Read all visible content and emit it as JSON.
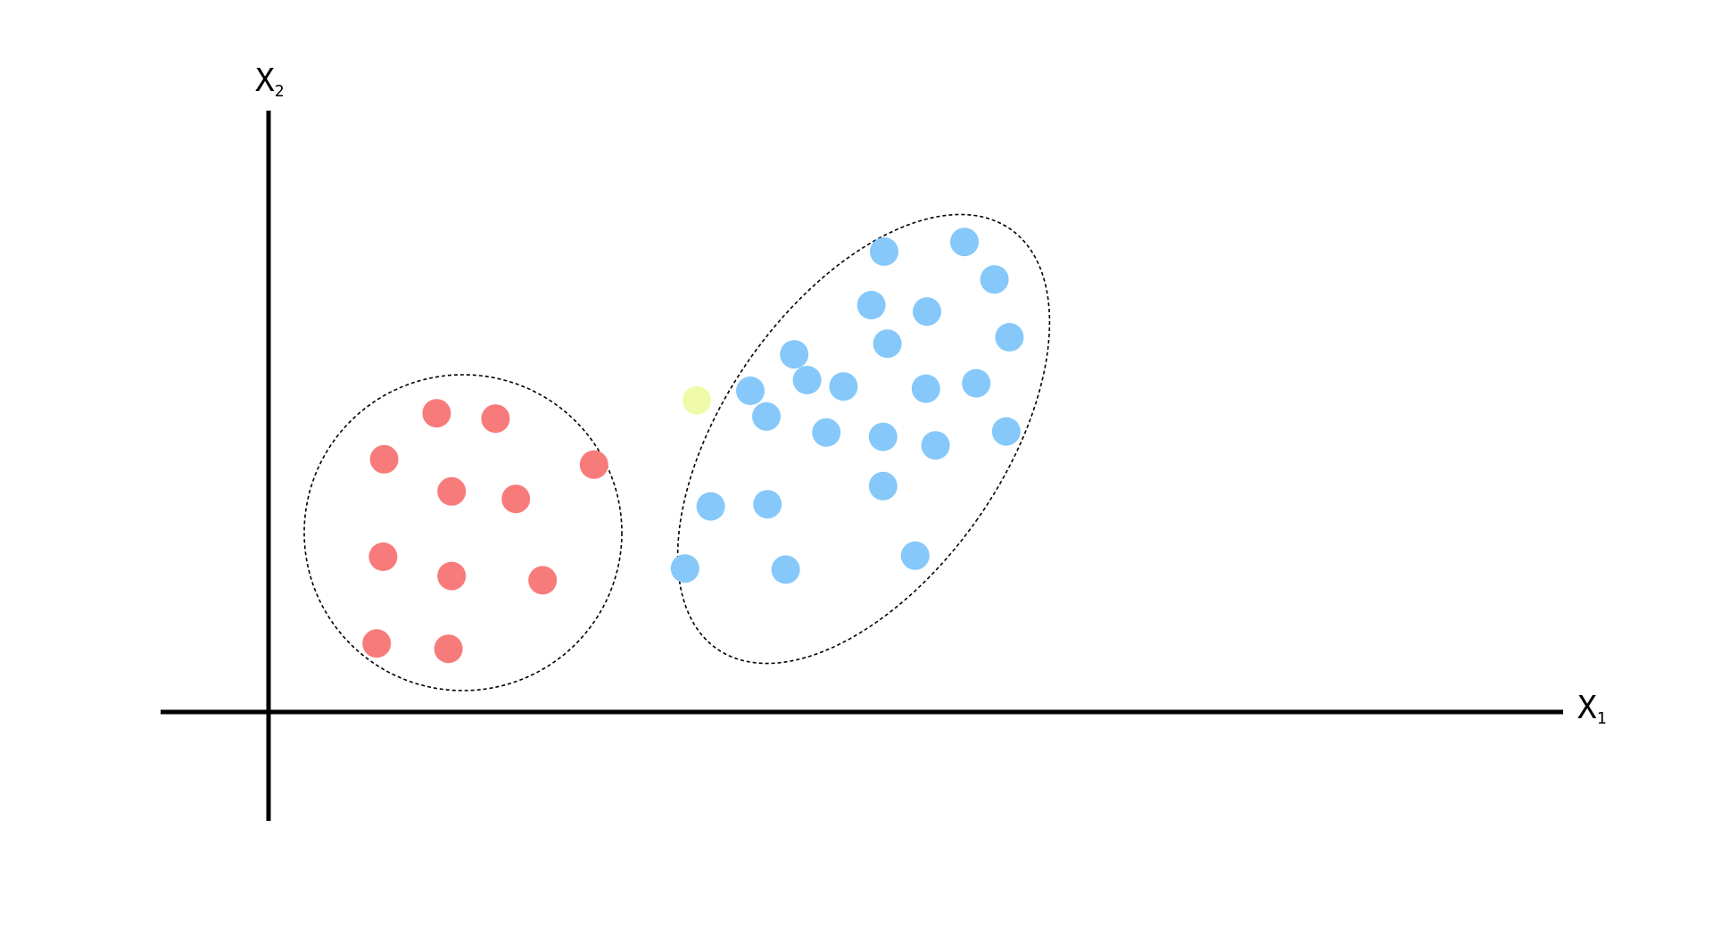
{
  "chart_data": {
    "type": "scatter",
    "xlabel_main": "X",
    "xlabel_sub": "1",
    "ylabel_main": "X",
    "ylabel_sub": "2",
    "xlim": [
      -1,
      12
    ],
    "ylim": [
      -1,
      6
    ],
    "grid": false,
    "series": [
      {
        "color": "#f87b7b",
        "points": [
          [
            1.57,
            2.79
          ],
          [
            2.12,
            2.74
          ],
          [
            1.08,
            2.36
          ],
          [
            3.04,
            2.31
          ],
          [
            1.71,
            2.06
          ],
          [
            2.31,
            1.99
          ],
          [
            1.07,
            1.45
          ],
          [
            1.71,
            1.27
          ],
          [
            2.56,
            1.23
          ],
          [
            1.01,
            0.64
          ],
          [
            1.68,
            0.59
          ]
        ]
      },
      {
        "color": "#86c8f9",
        "points": [
          [
            5.75,
            4.3
          ],
          [
            6.5,
            4.39
          ],
          [
            6.78,
            4.04
          ],
          [
            5.63,
            3.8
          ],
          [
            6.15,
            3.74
          ],
          [
            6.92,
            3.5
          ],
          [
            5.78,
            3.44
          ],
          [
            4.91,
            3.34
          ],
          [
            5.03,
            3.1
          ],
          [
            4.5,
            3.0
          ],
          [
            5.37,
            3.04
          ],
          [
            6.14,
            3.02
          ],
          [
            6.61,
            3.07
          ],
          [
            4.65,
            2.76
          ],
          [
            5.21,
            2.61
          ],
          [
            5.74,
            2.57
          ],
          [
            6.23,
            2.49
          ],
          [
            6.89,
            2.62
          ],
          [
            5.74,
            2.11
          ],
          [
            4.13,
            1.92
          ],
          [
            4.66,
            1.94
          ],
          [
            6.04,
            1.46
          ],
          [
            3.89,
            1.34
          ],
          [
            4.83,
            1.33
          ]
        ]
      },
      {
        "color": "#f0fbaa",
        "points": [
          [
            4.0,
            2.91
          ]
        ]
      }
    ],
    "clusters": [
      {
        "shape": "circle"
      },
      {
        "shape": "ellipse"
      }
    ]
  }
}
